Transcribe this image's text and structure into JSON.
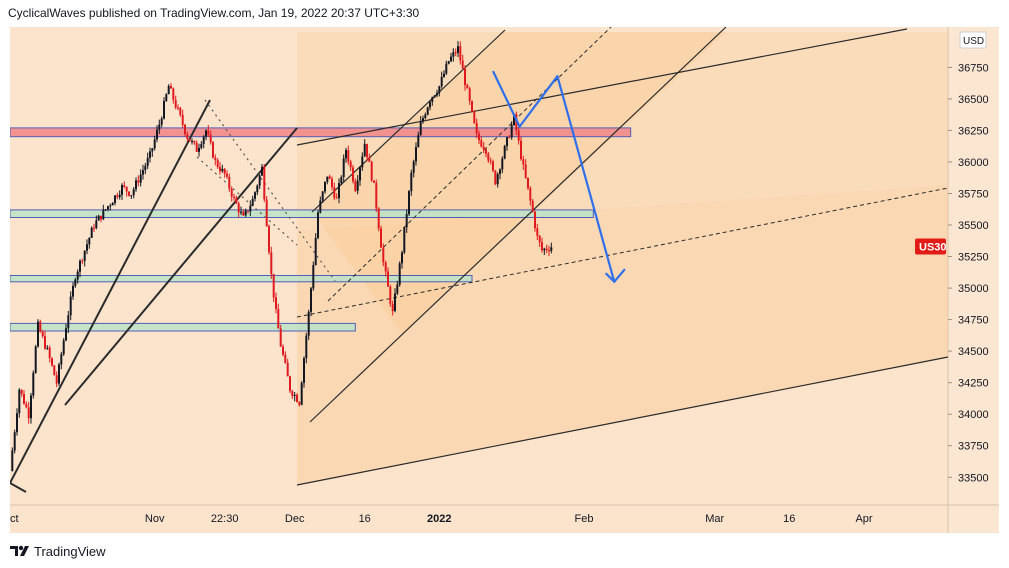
{
  "header": {
    "publisher_line": "CyclicalWaves published on TradingView.com, Jan 19, 2022 20:37 UTC+3:30"
  },
  "footer": {
    "brand": "TradingView",
    "logo_icon": "tradingview-logo-icon"
  },
  "colors": {
    "background": "#fbe3cc",
    "candle_up": "#131722",
    "candle_down": "#e0191f",
    "zone_red": "#f28b8b",
    "zone_green": "#bfe3c7",
    "zone_border_blue": "#3f51b5",
    "channel_fill": "#f9c98f",
    "projection": "#2f6fea",
    "price_tag": "#e21b17"
  },
  "chart_data": {
    "type": "candlestick",
    "symbol": "US30",
    "currency": "USD",
    "x_ticks": [
      "ct",
      "Nov",
      "22:30",
      "Dec",
      "16",
      "2022",
      "Feb",
      "Mar",
      "16",
      "Apr"
    ],
    "y_ticks": [
      33500,
      33750,
      34000,
      34250,
      34500,
      34750,
      35000,
      35250,
      35500,
      35750,
      36000,
      36250,
      36500,
      36750
    ],
    "ylim": [
      33280,
      37070
    ],
    "xlim_days": [
      0,
      201
    ],
    "tick_days": [
      0,
      31,
      46,
      61,
      76,
      92,
      123,
      151,
      167,
      183
    ],
    "last_price": 35330,
    "price_series_days": [
      0,
      2,
      4,
      6,
      8,
      10,
      12,
      14,
      16,
      18,
      20,
      22,
      24,
      26,
      28,
      30,
      32,
      34,
      36,
      38,
      40,
      42,
      44,
      46,
      48,
      50,
      52,
      54,
      56,
      57,
      58,
      60,
      62,
      64,
      66,
      68,
      70,
      72,
      74,
      76,
      78,
      80,
      82,
      84,
      86,
      88,
      90,
      92,
      94,
      96,
      98,
      100,
      102,
      104,
      106,
      108,
      110,
      112,
      113,
      114,
      116
    ],
    "price_series": [
      33550,
      34200,
      34000,
      34700,
      34500,
      34250,
      34700,
      35100,
      35300,
      35500,
      35600,
      35700,
      35800,
      35750,
      35900,
      36050,
      36300,
      36600,
      36400,
      36200,
      36100,
      36250,
      36000,
      35900,
      35700,
      35550,
      35700,
      35950,
      35100,
      34800,
      34550,
      34200,
      34100,
      34800,
      35600,
      35900,
      35700,
      36100,
      35800,
      36150,
      35800,
      35200,
      34800,
      35300,
      35900,
      36300,
      36500,
      36600,
      36800,
      36900,
      36550,
      36200,
      36100,
      35850,
      36100,
      36350,
      35950,
      35600,
      35400,
      35300,
      35330
    ],
    "horizontal_zones": [
      {
        "color": "red",
        "from_day": 0,
        "to_day": 133,
        "low": 36200,
        "high": 36270
      },
      {
        "color": "green",
        "from_day": 0,
        "to_day": 125,
        "low": 35560,
        "high": 35620
      },
      {
        "color": "green",
        "from_day": 0,
        "to_day": 99,
        "low": 35050,
        "high": 35100
      },
      {
        "color": "green",
        "from_day": 0,
        "to_day": 74,
        "low": 34660,
        "high": 34720
      }
    ],
    "projection_path": [
      {
        "day": 103.5,
        "price": 36720
      },
      {
        "day": 109.2,
        "price": 36280
      },
      {
        "day": 117.3,
        "price": 36680
      },
      {
        "day": 129.5,
        "price": 35050
      }
    ]
  }
}
